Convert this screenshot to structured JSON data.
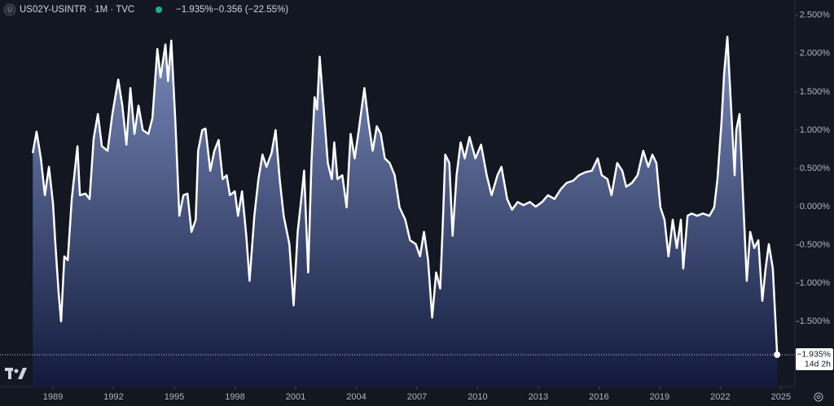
{
  "header": {
    "symbol": "US02Y-USINTR · 1M · TVC",
    "price": "−1.935%",
    "change": "−0.356 (−22.55%)",
    "countdown": "14d 2h"
  },
  "chart_data": {
    "type": "area",
    "x": [
      1988.0,
      1988.19,
      1988.4,
      1988.6,
      1988.8,
      1989.0,
      1989.12,
      1989.28,
      1989.4,
      1989.56,
      1989.73,
      1989.93,
      1990.21,
      1990.33,
      1990.61,
      1990.81,
      1991.01,
      1991.22,
      1991.42,
      1991.7,
      1991.94,
      1992.23,
      1992.43,
      1992.63,
      1992.83,
      1993.03,
      1993.23,
      1993.44,
      1993.72,
      1993.92,
      1994.16,
      1994.32,
      1994.56,
      1994.69,
      1994.85,
      1995.05,
      1995.25,
      1995.45,
      1995.65,
      1995.85,
      1996.06,
      1996.18,
      1996.38,
      1996.54,
      1996.78,
      1996.98,
      1997.19,
      1997.39,
      1997.59,
      1997.75,
      1997.99,
      1998.15,
      1998.35,
      1998.56,
      1998.72,
      1998.96,
      1999.16,
      1999.36,
      1999.56,
      1999.81,
      2000.01,
      2000.21,
      2000.41,
      2000.69,
      2000.9,
      2001.1,
      2001.3,
      2001.42,
      2001.62,
      2001.78,
      2001.94,
      2002.06,
      2002.19,
      2002.39,
      2002.59,
      2002.79,
      2002.91,
      2003.07,
      2003.31,
      2003.52,
      2003.72,
      2003.92,
      2004.12,
      2004.4,
      2004.6,
      2004.81,
      2005.01,
      2005.21,
      2005.41,
      2005.65,
      2005.9,
      2006.14,
      2006.42,
      2006.66,
      2006.94,
      2007.15,
      2007.35,
      2007.55,
      2007.75,
      2007.95,
      2008.15,
      2008.27,
      2008.4,
      2008.6,
      2008.76,
      2008.96,
      2009.16,
      2009.36,
      2009.6,
      2009.89,
      2010.17,
      2010.45,
      2010.69,
      2010.98,
      2011.18,
      2011.46,
      2011.7,
      2011.98,
      2012.27,
      2012.59,
      2012.87,
      2013.19,
      2013.48,
      2013.8,
      2014.12,
      2014.4,
      2014.73,
      2015.01,
      2015.33,
      2015.65,
      2015.94,
      2016.14,
      2016.42,
      2016.62,
      2016.9,
      2017.15,
      2017.35,
      2017.63,
      2017.91,
      2018.19,
      2018.44,
      2018.64,
      2018.84,
      2019.04,
      2019.24,
      2019.44,
      2019.65,
      2019.85,
      2020.05,
      2020.17,
      2020.38,
      2020.58,
      2020.86,
      2021.14,
      2021.46,
      2021.7,
      2021.86,
      2022.06,
      2022.19,
      2022.35,
      2022.51,
      2022.71,
      2022.79,
      2022.95,
      2023.15,
      2023.31,
      2023.48,
      2023.68,
      2023.88,
      2024.08,
      2024.24,
      2024.4,
      2024.6,
      2024.81
    ],
    "series": [
      {
        "color": "#ffffff",
        "values": [
          0.7,
          0.98,
          0.63,
          0.15,
          0.52,
          0.04,
          -0.49,
          -1.13,
          -1.5,
          -0.65,
          -0.7,
          0.1,
          0.79,
          0.15,
          0.17,
          0.1,
          0.89,
          1.21,
          0.79,
          0.73,
          1.21,
          1.66,
          1.32,
          0.81,
          1.55,
          0.95,
          1.32,
          1.0,
          0.95,
          1.16,
          2.06,
          1.69,
          2.12,
          1.64,
          2.17,
          1.11,
          -0.12,
          0.15,
          0.17,
          -0.33,
          -0.17,
          0.73,
          1.0,
          1.02,
          0.47,
          0.73,
          0.87,
          0.36,
          0.41,
          0.15,
          0.2,
          -0.12,
          0.2,
          -0.38,
          -0.97,
          -0.12,
          0.36,
          0.68,
          0.52,
          0.7,
          1.0,
          0.36,
          -0.12,
          -0.49,
          -1.29,
          -0.33,
          0.15,
          0.47,
          -0.86,
          0.57,
          1.43,
          1.27,
          1.96,
          1.27,
          0.57,
          0.36,
          0.84,
          0.36,
          0.41,
          -0.01,
          0.95,
          0.63,
          1.0,
          1.55,
          1.11,
          0.73,
          1.05,
          0.95,
          0.63,
          0.57,
          0.41,
          -0.01,
          -0.17,
          -0.44,
          -0.49,
          -0.65,
          -0.33,
          -0.7,
          -1.45,
          -0.86,
          -1.07,
          -0.28,
          0.68,
          0.57,
          -0.38,
          0.41,
          0.84,
          0.63,
          0.91,
          0.63,
          0.81,
          0.41,
          0.15,
          0.41,
          0.52,
          0.1,
          -0.04,
          0.06,
          0.02,
          0.06,
          0.0,
          0.06,
          0.15,
          0.1,
          0.23,
          0.31,
          0.34,
          0.41,
          0.45,
          0.47,
          0.63,
          0.41,
          0.36,
          0.15,
          0.57,
          0.47,
          0.26,
          0.31,
          0.41,
          0.73,
          0.52,
          0.68,
          0.57,
          -0.01,
          -0.17,
          -0.65,
          -0.17,
          -0.54,
          -0.17,
          -0.81,
          -0.12,
          -0.09,
          -0.12,
          -0.09,
          -0.12,
          -0.01,
          0.36,
          1.11,
          1.74,
          2.22,
          1.43,
          0.41,
          1.0,
          1.21,
          -0.01,
          -0.97,
          -0.33,
          -0.54,
          -0.44,
          -1.23,
          -0.81,
          -0.49,
          -0.81,
          -1.935
        ]
      }
    ],
    "last_value": {
      "value": -1.935,
      "label": "−1.935%"
    },
    "fill_top": "#7a8bbb",
    "fill_bottom": "#111a3c",
    "xlim": [
      1986.38,
      2025.69
    ],
    "ylim": [
      -2.35,
      2.7
    ],
    "xticks": [
      1989,
      1992,
      1995,
      1998,
      2001,
      2004,
      2007,
      2010,
      2013,
      2016,
      2019,
      2022,
      2025
    ],
    "yticks": [
      {
        "value": 2.5,
        "label": "2.500%"
      },
      {
        "value": 2.0,
        "label": "2.000%"
      },
      {
        "value": 1.5,
        "label": "1.500%"
      },
      {
        "value": 1.0,
        "label": "1.000%"
      },
      {
        "value": 0.5,
        "label": "0.500%"
      },
      {
        "value": 0.0,
        "label": "0.000%"
      },
      {
        "value": -0.5,
        "label": "-0.500%"
      },
      {
        "value": -1.0,
        "label": "-1.000%"
      },
      {
        "value": -1.5,
        "label": "-1.500%"
      }
    ]
  }
}
